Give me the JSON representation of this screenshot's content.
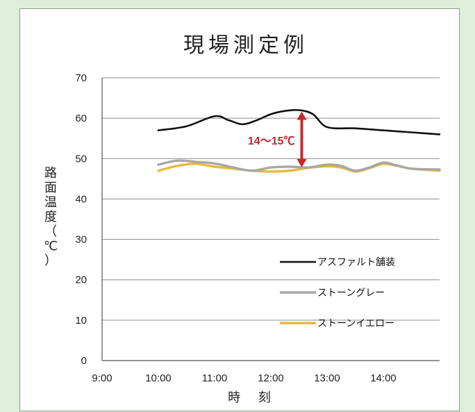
{
  "chart_data": {
    "type": "line",
    "title": "現場測定例",
    "xlabel": "時 刻",
    "ylabel_chars": [
      "路",
      "面",
      "温",
      "度",
      "（",
      "℃",
      "）"
    ],
    "x_ticks": [
      "9:00",
      "10:00",
      "11:00",
      "12:00",
      "13:00",
      "14:00"
    ],
    "y_ticks": [
      "0",
      "10",
      "20",
      "30",
      "40",
      "50",
      "60",
      "70"
    ],
    "xlim": [
      "9:00",
      "15:00"
    ],
    "ylim": [
      0,
      70
    ],
    "grid": true,
    "legend_position": "bottom-right",
    "annotation": {
      "text": "14～15℃",
      "x": "12:30",
      "from": 47.5,
      "to": 62
    },
    "series": [
      {
        "name": "アスファルト舗装",
        "color": "#111111",
        "points": [
          [
            "10:00",
            57
          ],
          [
            "10:30",
            58
          ],
          [
            "11:00",
            60.5
          ],
          [
            "11:15",
            59.5
          ],
          [
            "11:30",
            58.5
          ],
          [
            "11:45",
            59.5
          ],
          [
            "12:00",
            61
          ],
          [
            "12:15",
            61.8
          ],
          [
            "12:30",
            62
          ],
          [
            "12:45",
            61
          ],
          [
            "13:00",
            57.8
          ],
          [
            "13:30",
            57.5
          ],
          [
            "14:00",
            57
          ],
          [
            "14:30",
            56.5
          ],
          [
            "15:00",
            56
          ]
        ]
      },
      {
        "name": "ストーングレー",
        "color": "#a7a7a7",
        "points": [
          [
            "10:00",
            48.5
          ],
          [
            "10:20",
            49.5
          ],
          [
            "10:40",
            49.2
          ],
          [
            "11:00",
            48.8
          ],
          [
            "11:20",
            47.8
          ],
          [
            "11:40",
            47
          ],
          [
            "12:00",
            47.8
          ],
          [
            "12:20",
            48
          ],
          [
            "12:40",
            47.8
          ],
          [
            "13:00",
            48.5
          ],
          [
            "13:15",
            48.2
          ],
          [
            "13:30",
            47
          ],
          [
            "13:45",
            47.8
          ],
          [
            "14:00",
            49
          ],
          [
            "14:15",
            48.3
          ],
          [
            "14:30",
            47.5
          ],
          [
            "15:00",
            47.3
          ]
        ]
      },
      {
        "name": "ストーンイエロー",
        "color": "#e8b93d",
        "points": [
          [
            "10:00",
            47
          ],
          [
            "10:20",
            48.2
          ],
          [
            "10:40",
            48.7
          ],
          [
            "11:00",
            48
          ],
          [
            "11:20",
            47.5
          ],
          [
            "11:40",
            47
          ],
          [
            "12:00",
            46.8
          ],
          [
            "12:20",
            47
          ],
          [
            "12:40",
            47.7
          ],
          [
            "13:00",
            48.1
          ],
          [
            "13:15",
            47.8
          ],
          [
            "13:30",
            46.8
          ],
          [
            "13:45",
            47.6
          ],
          [
            "14:00",
            48.7
          ],
          [
            "14:15",
            48.2
          ],
          [
            "14:30",
            47.5
          ],
          [
            "15:00",
            47
          ]
        ]
      }
    ]
  }
}
